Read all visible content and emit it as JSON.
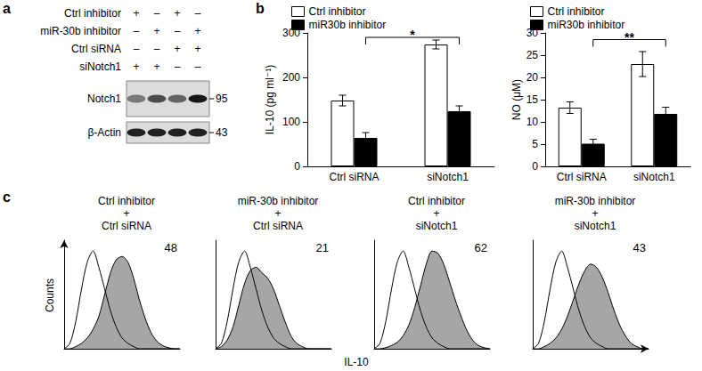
{
  "panel_labels": [
    "a",
    "b",
    "c"
  ],
  "blot": {
    "conditions": [
      {
        "label": "Ctrl inhibitor",
        "signs": [
          "+",
          "–",
          "+",
          "–"
        ]
      },
      {
        "label": "miR-30b inhibitor",
        "signs": [
          "–",
          "+",
          "–",
          "+"
        ]
      },
      {
        "label": "Ctrl siRNA",
        "signs": [
          "–",
          "–",
          "+",
          "+"
        ]
      },
      {
        "label": "siNotch1",
        "signs": [
          "+",
          "+",
          "–",
          "–"
        ]
      }
    ],
    "bands": [
      {
        "label": "Notch1",
        "mw": 95,
        "intensity": [
          0.45,
          0.65,
          0.55,
          0.9
        ]
      },
      {
        "label": "β-Actin",
        "mw": 43,
        "intensity": [
          0.85,
          0.85,
          0.85,
          0.85
        ]
      }
    ]
  },
  "chart_data": [
    {
      "type": "bar",
      "ylabel": "IL-10 (pg ml⁻¹)",
      "categories": [
        "Ctrl siRNA",
        "siNotch1"
      ],
      "series": [
        {
          "name": "Ctrl inhibitor",
          "color": "#ffffff",
          "values": [
            148,
            274
          ],
          "errors": [
            12,
            10
          ]
        },
        {
          "name": "miR30b inhibitor",
          "color": "#000000",
          "values": [
            64,
            124
          ],
          "errors": [
            12,
            12
          ]
        }
      ],
      "ylim": [
        0,
        300
      ],
      "yticks": [
        0,
        100,
        200,
        300
      ],
      "legend": "top-left",
      "annotations": [
        {
          "text": "*",
          "from": "Ctrl siRNA",
          "to": "siNotch1",
          "series": "miR30b inhibitor",
          "y": 290
        }
      ]
    },
    {
      "type": "bar",
      "ylabel": "NO (μM)",
      "categories": [
        "Ctrl siRNA",
        "siNotch1"
      ],
      "series": [
        {
          "name": "Ctrl inhibitor",
          "color": "#ffffff",
          "values": [
            13.2,
            23
          ],
          "errors": [
            1.3,
            2.8
          ]
        },
        {
          "name": "miR30b inhibitor",
          "color": "#000000",
          "values": [
            5.1,
            11.8
          ],
          "errors": [
            1.0,
            1.5
          ]
        }
      ],
      "ylim": [
        0,
        30
      ],
      "yticks": [
        0,
        5,
        10,
        15,
        20,
        25,
        30
      ],
      "legend": "top-left",
      "annotations": [
        {
          "text": "**",
          "from": "Ctrl siRNA",
          "to": "siNotch1",
          "series": "miR30b inhibitor",
          "y": 28.5
        }
      ]
    },
    {
      "type": "line",
      "title": "Ctrl inhibitor\n+\nCtrl siRNA",
      "annotation": 48,
      "x": [
        0,
        5,
        10,
        15,
        20,
        25,
        30,
        35,
        40,
        45,
        50,
        55,
        60,
        65,
        70,
        75,
        80,
        85,
        90,
        95,
        100
      ],
      "series": [
        {
          "type": "line",
          "color": "#000000",
          "values": [
            0,
            5,
            25,
            55,
            80,
            90,
            75,
            55,
            35,
            20,
            10,
            5,
            2,
            0,
            0,
            0,
            0,
            0,
            0,
            0,
            0
          ]
        },
        {
          "type": "area",
          "color": "#a6a6a6",
          "values": [
            0,
            0,
            2,
            5,
            10,
            18,
            30,
            50,
            70,
            82,
            85,
            80,
            65,
            45,
            28,
            15,
            7,
            3,
            1,
            0,
            0
          ]
        }
      ],
      "xlim": [
        0,
        100
      ],
      "ylim": [
        0,
        100
      ],
      "tick_labels": false
    },
    {
      "type": "line",
      "title": "miR-30b inhibitor\n+\nCtrl siRNA",
      "annotation": 21,
      "x": [
        0,
        5,
        10,
        15,
        20,
        25,
        30,
        35,
        40,
        45,
        50,
        55,
        60,
        65,
        70,
        75,
        80,
        85,
        90,
        95,
        100
      ],
      "series": [
        {
          "type": "line",
          "color": "#000000",
          "values": [
            0,
            5,
            25,
            55,
            80,
            90,
            75,
            55,
            35,
            20,
            10,
            5,
            2,
            0,
            0,
            0,
            0,
            0,
            0,
            0,
            0
          ]
        },
        {
          "type": "area",
          "color": "#a6a6a6",
          "values": [
            0,
            2,
            8,
            20,
            40,
            60,
            72,
            75,
            70,
            65,
            55,
            40,
            25,
            12,
            5,
            2,
            0,
            0,
            0,
            0,
            0
          ]
        }
      ],
      "xlim": [
        0,
        100
      ],
      "ylim": [
        0,
        100
      ],
      "tick_labels": false
    },
    {
      "type": "line",
      "title": "Ctrl inhibitor\n+\nsiNotch1",
      "annotation": 62,
      "x": [
        0,
        5,
        10,
        15,
        20,
        25,
        30,
        35,
        40,
        45,
        50,
        55,
        60,
        65,
        70,
        75,
        80,
        85,
        90,
        95,
        100
      ],
      "series": [
        {
          "type": "line",
          "color": "#000000",
          "values": [
            0,
            5,
            25,
            55,
            80,
            90,
            75,
            55,
            35,
            20,
            10,
            5,
            2,
            0,
            0,
            0,
            0,
            0,
            0,
            0,
            0
          ]
        },
        {
          "type": "area",
          "color": "#a6a6a6",
          "values": [
            0,
            0,
            1,
            3,
            6,
            12,
            22,
            38,
            58,
            78,
            90,
            88,
            78,
            62,
            45,
            30,
            17,
            8,
            3,
            1,
            0
          ]
        }
      ],
      "xlim": [
        0,
        100
      ],
      "ylim": [
        0,
        100
      ],
      "tick_labels": false
    },
    {
      "type": "line",
      "title": "miR-30b inhibitor\n+\nsiNotch1",
      "annotation": 43,
      "x": [
        0,
        5,
        10,
        15,
        20,
        25,
        30,
        35,
        40,
        45,
        50,
        55,
        60,
        65,
        70,
        75,
        80,
        85,
        90,
        95,
        100
      ],
      "series": [
        {
          "type": "line",
          "color": "#000000",
          "values": [
            0,
            5,
            25,
            55,
            80,
            90,
            75,
            55,
            35,
            20,
            10,
            5,
            2,
            0,
            0,
            0,
            0,
            0,
            0,
            0,
            0
          ]
        },
        {
          "type": "area",
          "color": "#a6a6a6",
          "values": [
            0,
            0,
            2,
            5,
            10,
            18,
            30,
            45,
            60,
            72,
            78,
            75,
            66,
            52,
            36,
            22,
            12,
            5,
            2,
            0,
            0
          ]
        }
      ],
      "xlim": [
        0,
        100
      ],
      "ylim": [
        0,
        100
      ],
      "tick_labels": false
    }
  ],
  "histogram_axes": {
    "xlabel": "IL-10",
    "ylabel": "Counts"
  }
}
